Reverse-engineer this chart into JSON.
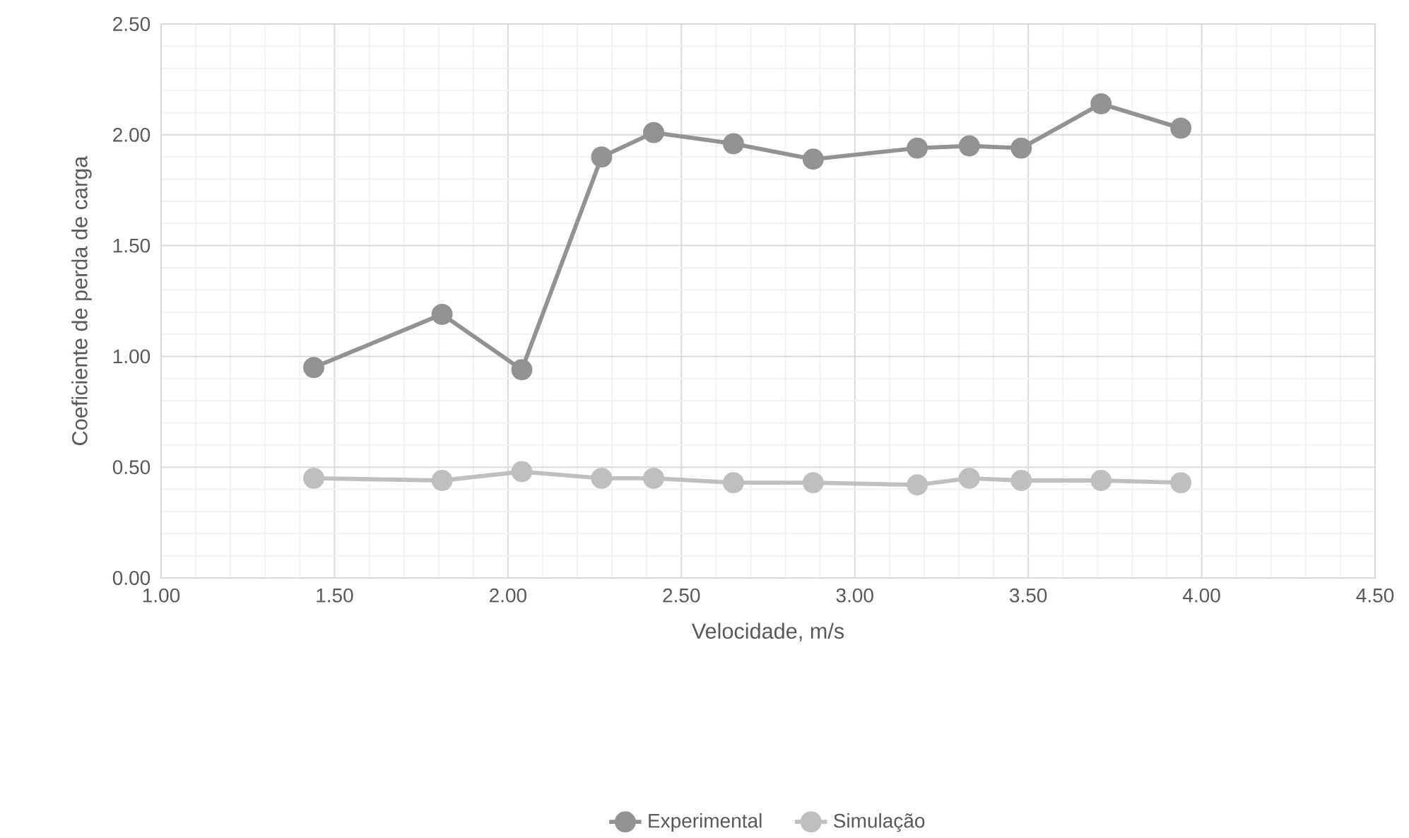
{
  "chart_data": {
    "type": "line",
    "xlabel": "Velocidade, m/s",
    "ylabel": "Coeficiente de perda de carga",
    "x": [
      1.44,
      1.81,
      2.04,
      2.27,
      2.42,
      2.65,
      2.88,
      3.18,
      3.33,
      3.48,
      3.71,
      3.94
    ],
    "series": [
      {
        "name": "Experimental",
        "color": "#929292",
        "values": [
          0.95,
          1.19,
          0.94,
          1.9,
          2.01,
          1.96,
          1.89,
          1.94,
          1.95,
          1.94,
          2.14,
          2.03
        ]
      },
      {
        "name": "Simulação",
        "color": "#bfbfbf",
        "values": [
          0.45,
          0.44,
          0.48,
          0.45,
          0.45,
          0.43,
          0.43,
          0.42,
          0.45,
          0.44,
          0.44,
          0.43
        ]
      }
    ],
    "xlim": [
      1.0,
      4.5
    ],
    "xticks": [
      {
        "value": 1.0,
        "label": "1.00"
      },
      {
        "value": 1.5,
        "label": "1.50"
      },
      {
        "value": 2.0,
        "label": "2.00"
      },
      {
        "value": 2.5,
        "label": "2.50"
      },
      {
        "value": 3.0,
        "label": "3.00"
      },
      {
        "value": 3.5,
        "label": "3.50"
      },
      {
        "value": 4.0,
        "label": "4.00"
      },
      {
        "value": 4.5,
        "label": "4.50"
      }
    ],
    "ylim": [
      0,
      2.5
    ],
    "yticks": [
      {
        "value": 0,
        "label": "0.00"
      },
      {
        "value": 0.5,
        "label": "0.50"
      },
      {
        "value": 1.0,
        "label": "1.00"
      },
      {
        "value": 1.5,
        "label": "1.50"
      },
      {
        "value": 2.0,
        "label": "2.00"
      },
      {
        "value": 2.5,
        "label": "2.50"
      }
    ],
    "grid": true,
    "legend": "bottom",
    "marker": "circle",
    "line_style": "solid"
  }
}
